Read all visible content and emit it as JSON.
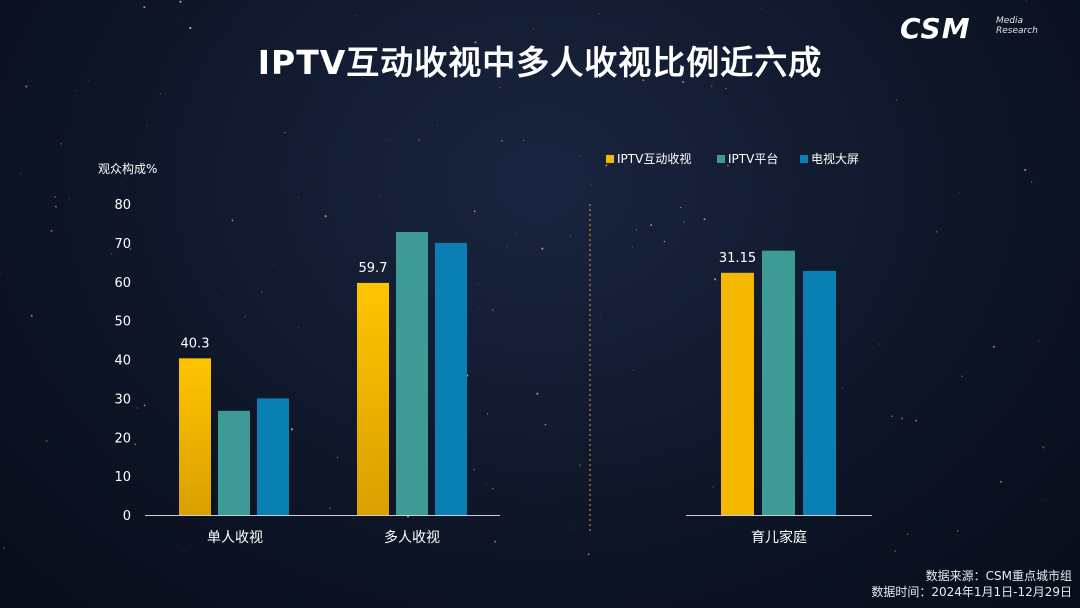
{
  "title": "IPTV互动收视中多人收视比例近六成",
  "logo": {
    "brand": "CSM",
    "line1": "Media",
    "line2": "Research"
  },
  "footer": {
    "source": "数据来源：CSM重点城市组",
    "time": "数据时间：2024年1月1日-12月29日"
  },
  "colors": {
    "iptv_interactive": "#f5b800",
    "iptv_platform": "#3e9a94",
    "tv_screen": "#0a7fb3"
  },
  "chart_data": [
    {
      "type": "bar",
      "ylabel": "观众构成%",
      "ylim": [
        0,
        80
      ],
      "yticks": [
        0,
        10,
        20,
        30,
        40,
        50,
        60,
        70,
        80
      ],
      "categories": [
        "单人收视",
        "多人收视"
      ],
      "series": [
        {
          "name": "IPTV互动收视",
          "values": [
            40.3,
            59.7
          ],
          "labels": [
            "40.3",
            "59.7"
          ]
        },
        {
          "name": "IPTV平台",
          "values": [
            26.8,
            72.8
          ],
          "labels": [
            "",
            ""
          ]
        },
        {
          "name": "电视大屏",
          "values": [
            30.0,
            70.0
          ],
          "labels": [
            "",
            ""
          ]
        }
      ]
    },
    {
      "type": "bar",
      "legend": "top",
      "categories": [
        "育儿家庭"
      ],
      "series": [
        {
          "name": "IPTV互动收视",
          "values": [
            31.15
          ],
          "labels": [
            "31.15"
          ]
        },
        {
          "name": "IPTV平台",
          "values": [
            34.0
          ],
          "labels": [
            ""
          ]
        },
        {
          "name": "电视大屏",
          "values": [
            31.4
          ],
          "labels": [
            ""
          ]
        }
      ],
      "ylim": [
        0,
        40
      ]
    }
  ]
}
